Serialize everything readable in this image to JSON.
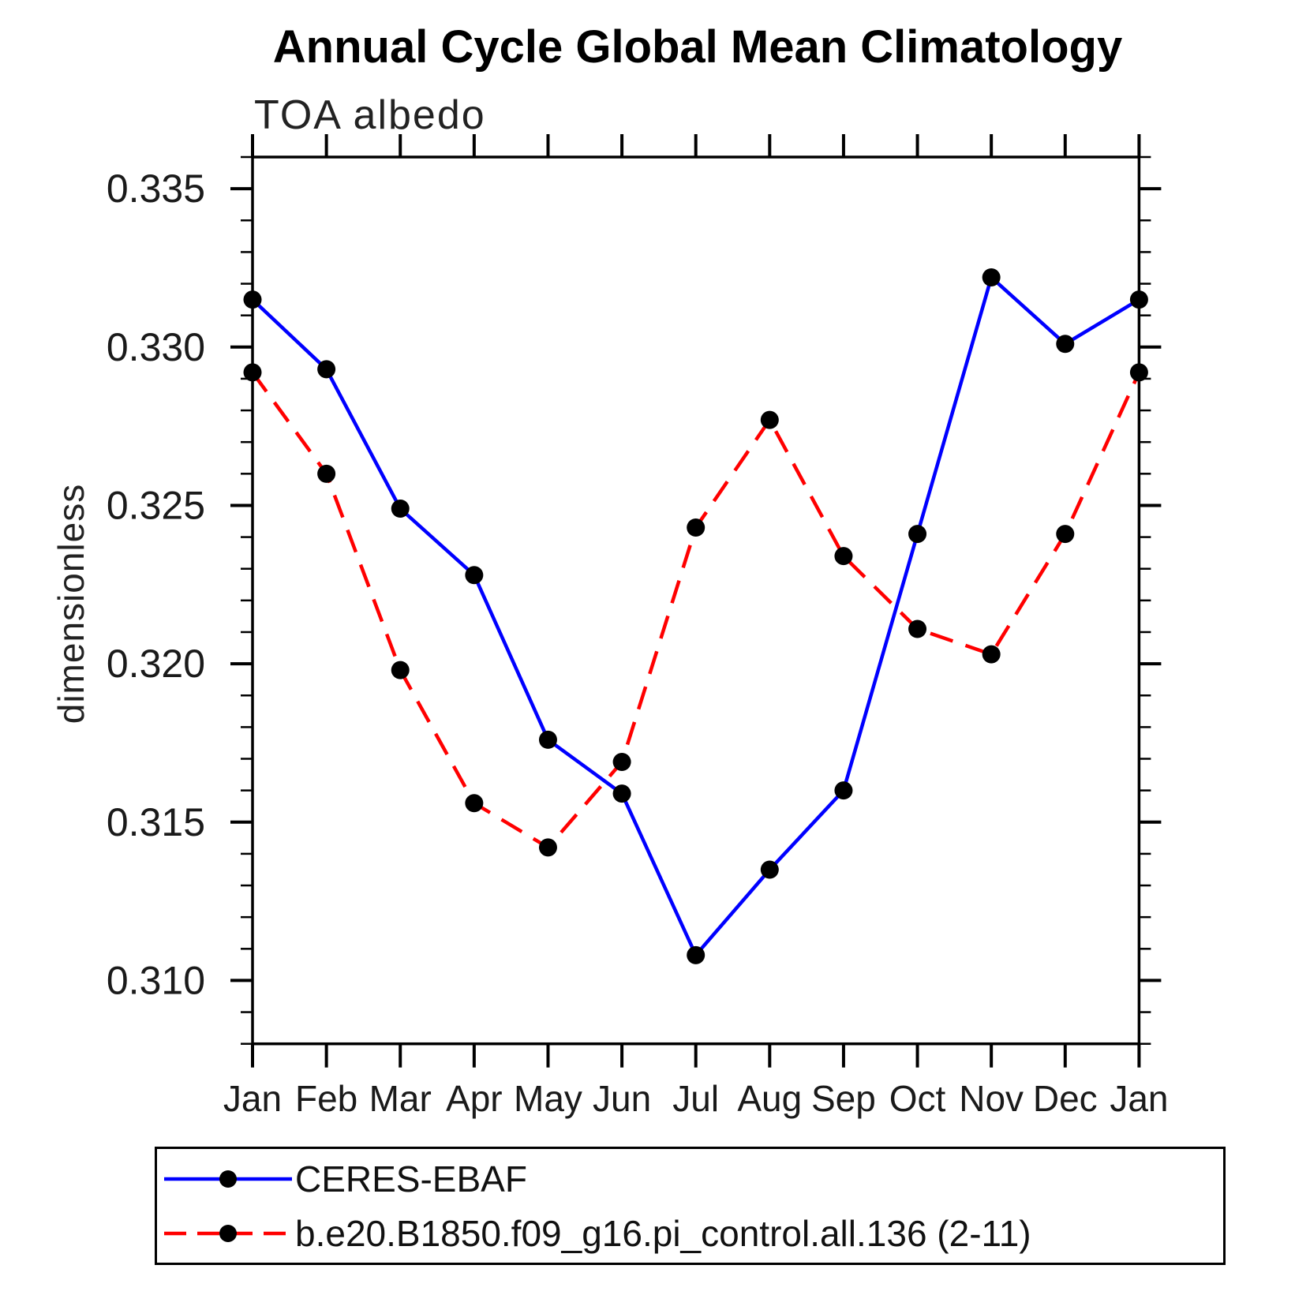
{
  "title": "Annual Cycle Global Mean Climatology",
  "subtitle": "TOA albedo",
  "chart_data": {
    "type": "line",
    "title": "Annual Cycle Global Mean Climatology",
    "subtitle": "TOA albedo",
    "xlabel": "",
    "ylabel": "dimensionless",
    "categories": [
      "Jan",
      "Feb",
      "Mar",
      "Apr",
      "May",
      "Jun",
      "Jul",
      "Aug",
      "Sep",
      "Oct",
      "Nov",
      "Dec",
      "Jan"
    ],
    "ylim": [
      0.308,
      0.336
    ],
    "y_major_tick_values": [
      0.31,
      0.315,
      0.32,
      0.325,
      0.33,
      0.335
    ],
    "y_major_tick_labels": [
      "0.310",
      "0.315",
      "0.320",
      "0.325",
      "0.330",
      "0.335"
    ],
    "y_minor_tick_step": 0.001,
    "grid": false,
    "legend_position": "bottom",
    "axis_color": "#000000",
    "series": [
      {
        "name": "CERES-EBAF",
        "color": "#0000ff",
        "line_style": "solid",
        "marker": "circle",
        "marker_color": "#000000",
        "values": [
          0.3315,
          0.3293,
          0.3249,
          0.3228,
          0.3176,
          0.3159,
          0.3108,
          0.3135,
          0.316,
          0.3241,
          0.3322,
          0.3301,
          0.3315
        ]
      },
      {
        "name": "b.e20.B1850.f09_g16.pi_control.all.136 (2-11)",
        "color": "#ff0000",
        "line_style": "dashed",
        "marker": "circle",
        "marker_color": "#000000",
        "values": [
          0.3292,
          0.326,
          0.3198,
          0.3156,
          0.3142,
          0.3169,
          0.3243,
          0.3277,
          0.3234,
          0.3211,
          0.3203,
          0.3241,
          0.3292
        ]
      }
    ]
  }
}
